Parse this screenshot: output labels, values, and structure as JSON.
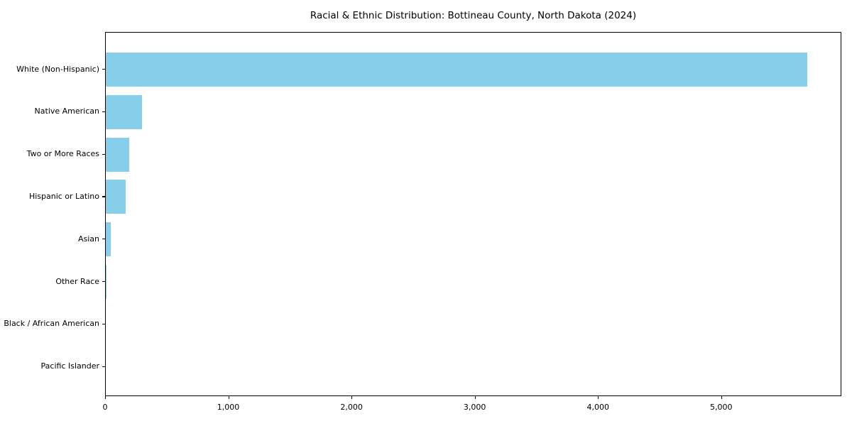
{
  "chart_data": {
    "type": "bar",
    "orientation": "horizontal",
    "title": "Racial & Ethnic Distribution: Bottineau County, North Dakota (2024)",
    "categories": [
      "White (Non-Hispanic)",
      "Native American",
      "Two or More Races",
      "Hispanic or Latino",
      "Asian",
      "Other Race",
      "Black / African American",
      "Pacific Islander"
    ],
    "values": [
      5690,
      295,
      190,
      160,
      40,
      8,
      0,
      0
    ],
    "xlabel": "",
    "ylabel": "",
    "xlim": [
      0,
      5975
    ],
    "xticks": [
      0,
      1000,
      2000,
      3000,
      4000,
      5000
    ],
    "xtick_labels": [
      "0",
      "1,000",
      "2,000",
      "3,000",
      "4,000",
      "5,000"
    ],
    "legend": null,
    "grid": false,
    "bar_color": "#87CEEB",
    "background_color": "#FFFFFF",
    "spine_color": "#000000"
  }
}
